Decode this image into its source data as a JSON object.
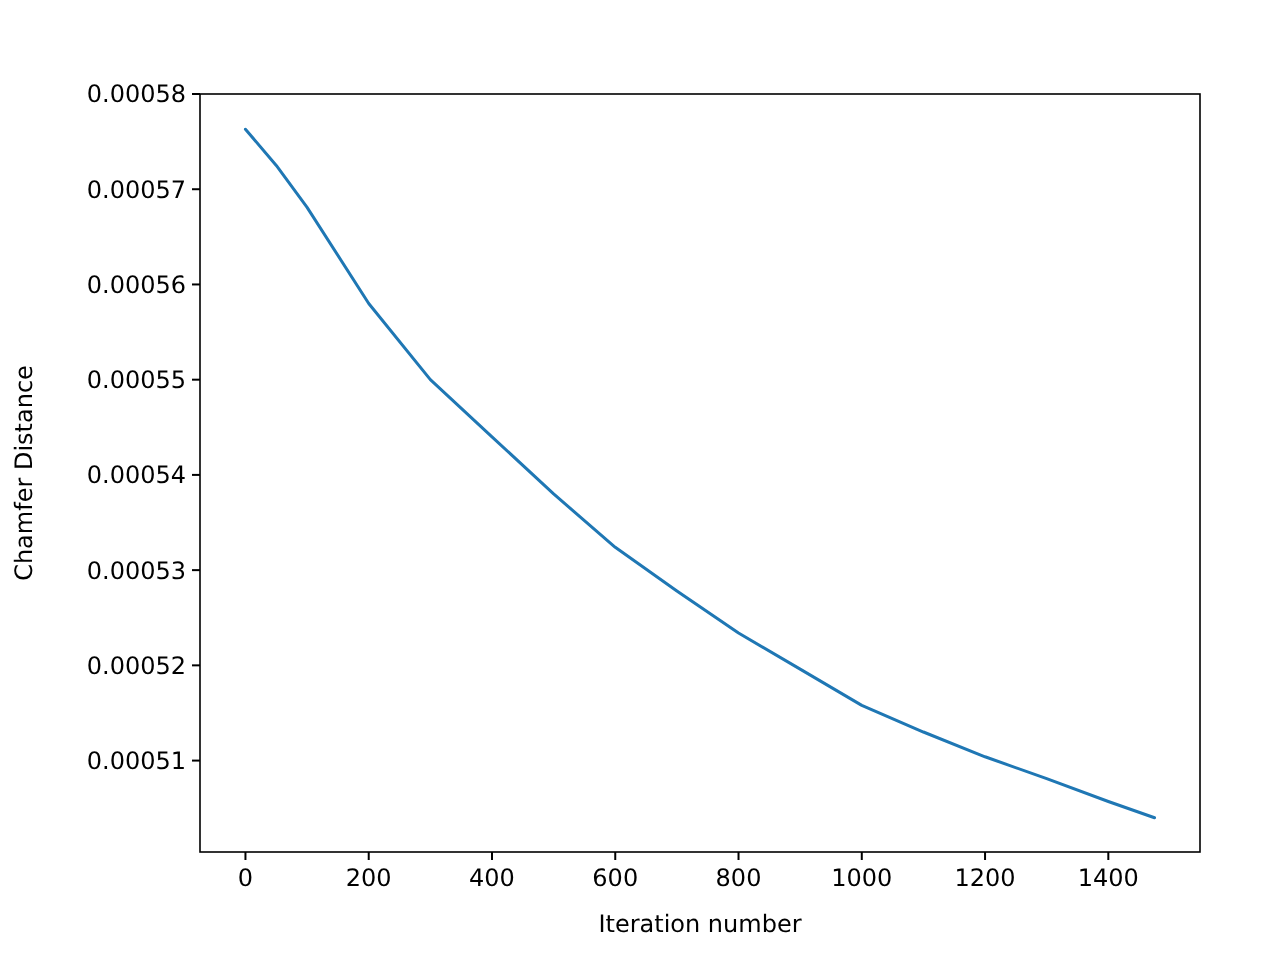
{
  "chart_data": {
    "type": "line",
    "xlabel": "Iteration number",
    "ylabel": "Chamfer Distance",
    "xlim": [
      -73.75,
      1548.75
    ],
    "ylim": [
      0.0005004,
      0.00058
    ],
    "xticks": [
      0,
      200,
      400,
      600,
      800,
      1000,
      1200,
      1400
    ],
    "yticks": [
      0.00051,
      0.00052,
      0.00053,
      0.00054,
      0.00055,
      0.00056,
      0.00057,
      0.00058
    ],
    "grid": false,
    "series": [
      {
        "color": "#1f77b4",
        "x": [
          0,
          50,
          100,
          200,
          300,
          400,
          500,
          600,
          700,
          800,
          900,
          1000,
          1100,
          1200,
          1300,
          1400,
          1475
        ],
        "values": [
          0.0005763,
          0.0005725,
          0.0005681,
          0.000558,
          0.00055,
          0.000544,
          0.000538,
          0.0005324,
          0.0005278,
          0.0005234,
          0.0005196,
          0.0005158,
          0.000513,
          0.0005104,
          0.0005081,
          0.0005057,
          0.000504
        ]
      }
    ]
  }
}
